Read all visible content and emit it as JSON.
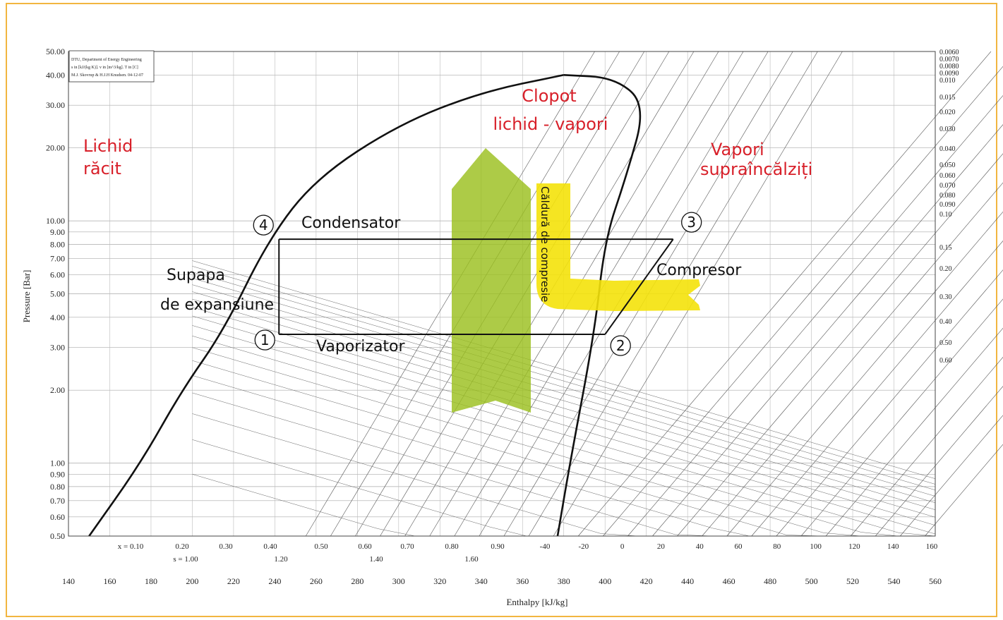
{
  "chart_data": {
    "type": "line",
    "xlabel": "Enthalpy [kJ/kg]",
    "ylabel": "Pressure [Bar]",
    "xlim": [
      140,
      560
    ],
    "ylim": [
      0.5,
      50
    ],
    "y_scale": "log",
    "x_ticks": [
      "140",
      "160",
      "180",
      "200",
      "220",
      "240",
      "260",
      "280",
      "300",
      "320",
      "340",
      "360",
      "380",
      "400",
      "420",
      "440",
      "460",
      "480",
      "500",
      "520",
      "540",
      "560"
    ],
    "y_ticks": [
      "50.00",
      "40.00",
      "30.00",
      "20.00",
      "10.00",
      "9.00",
      "8.00",
      "7.00",
      "6.00",
      "5.00",
      "4.00",
      "3.00",
      "2.00",
      "1.00",
      "0.90",
      "0.80",
      "0.70",
      "0.60",
      "0.50"
    ],
    "right_ticks": [
      "0.0060",
      "0.0070",
      "0.0080",
      "0.0090",
      "0.010",
      "0.015",
      "0.020",
      "0.030",
      "0.040",
      "0.050",
      "0.060",
      "0.070",
      "0.080",
      "0.090",
      "0.10",
      "0.15",
      "0.20",
      "0.30",
      "0.40",
      "0.50",
      "0.60"
    ],
    "quality_ticks": [
      "x = 0.10",
      "0.20",
      "0.30",
      "0.40",
      "0.50",
      "0.60",
      "0.70",
      "0.80",
      "0.90"
    ],
    "entropy_ticks": [
      "s = 1.00",
      "1.20",
      "1.40",
      "1.60"
    ],
    "temp_ticks_bottom": [
      "-40",
      "-20",
      "0",
      "20",
      "40",
      "60",
      "80",
      "100",
      "120",
      "140",
      "160"
    ],
    "legend_box": [
      "DTU, Department of Energy Engineering",
      "s in [kJ/(kg K)]. v in [m^3/kg]. T in [C]",
      "M.J. Skovrup & H.J.H Knudsen. 04-12-07"
    ],
    "saturation_dome": {
      "liquid": [
        [
          150,
          0.5
        ],
        [
          175,
          1.0
        ],
        [
          195,
          2.0
        ],
        [
          215,
          3.5
        ],
        [
          237,
          8.4
        ],
        [
          260,
          15
        ],
        [
          300,
          25
        ],
        [
          340,
          34
        ],
        [
          380,
          40
        ]
      ],
      "vapor": [
        [
          380,
          40
        ],
        [
          405,
          39
        ],
        [
          420,
          30
        ],
        [
          410,
          15
        ],
        [
          400,
          8.4
        ],
        [
          395,
          3.5
        ],
        [
          383,
          1.0
        ],
        [
          377,
          0.5
        ]
      ]
    },
    "cycle": {
      "series": [
        {
          "name": "Condensator",
          "x": [
            242,
            433
          ],
          "y": [
            8.4,
            8.4
          ]
        },
        {
          "name": "Vaporizator",
          "x": [
            242,
            400
          ],
          "y": [
            3.4,
            3.4
          ]
        },
        {
          "name": "Compresor",
          "x": [
            400,
            433
          ],
          "y": [
            3.4,
            8.4
          ]
        },
        {
          "name": "Supapa de expansiune",
          "x": [
            242,
            242
          ],
          "y": [
            8.4,
            3.4
          ]
        }
      ],
      "points": [
        {
          "id": "1",
          "h": 242,
          "p": 3.4
        },
        {
          "id": "2",
          "h": 400,
          "p": 3.4
        },
        {
          "id": "3",
          "h": 433,
          "p": 8.4
        },
        {
          "id": "4",
          "h": 242,
          "p": 8.4
        }
      ]
    },
    "annotations": {
      "red": [
        [
          "Lichid",
          "răcit"
        ],
        [
          "Clopot",
          "lichid - vapori"
        ],
        [
          "Vapori",
          "supraîncălziți"
        ]
      ],
      "black": [
        "Condensator",
        "Vaporizator",
        "Compresor",
        "Supapa",
        "de expansiune"
      ],
      "vertical": "Căldură de compresie"
    }
  },
  "colors": {
    "frame": "#f2b640",
    "red_text": "#d8202a",
    "green_arrow": "#9bbf1e",
    "yellow_arrow": "#f4e20a",
    "grid": "#999999"
  }
}
